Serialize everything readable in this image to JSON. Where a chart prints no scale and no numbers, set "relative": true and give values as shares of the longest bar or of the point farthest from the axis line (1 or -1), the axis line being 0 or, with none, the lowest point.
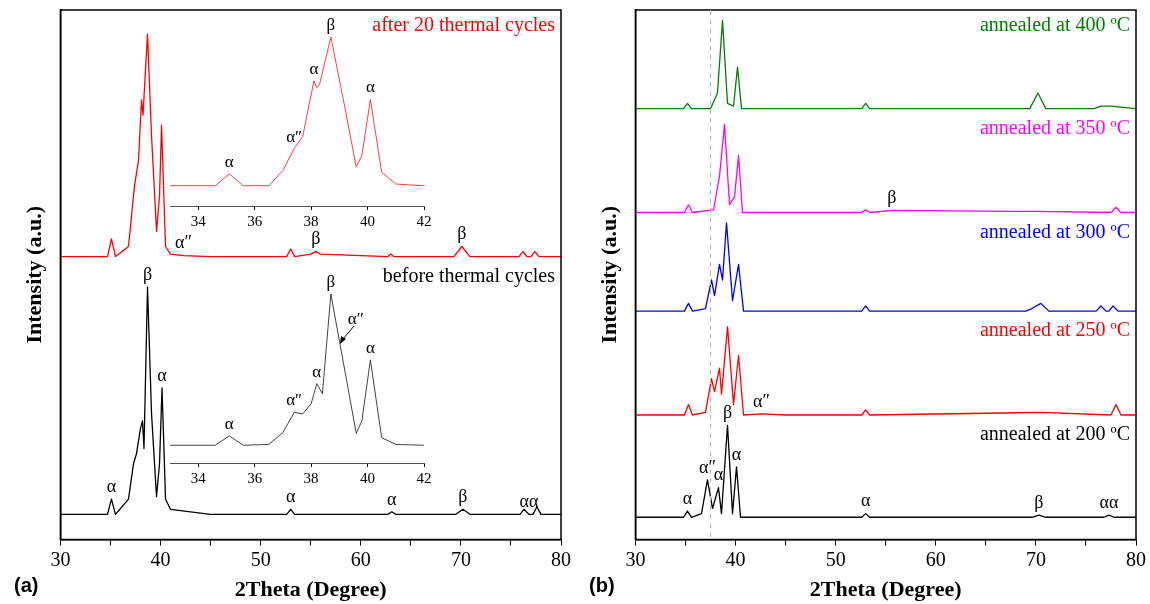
{
  "chart_data": [
    {
      "type": "line",
      "relative": true,
      "xlabel": "2Theta (Degree)",
      "ylabel": "Intensity (a.u.)",
      "xlim": [
        30,
        80
      ],
      "xticks": [
        30,
        {
          "value": 35,
          "label": null
        },
        40,
        {
          "value": 45,
          "label": null
        },
        50,
        {
          "value": 55,
          "label": null
        },
        60,
        {
          "value": 65,
          "label": null
        },
        70,
        {
          "value": 75,
          "label": null
        },
        80
      ],
      "tick_labels": "x",
      "series": [
        {
          "name": "before thermal cycles",
          "color": "#000000",
          "x": [
            30,
            34.7,
            35.1,
            35.5,
            36.8,
            37.3,
            37.6,
            38.0,
            38.2,
            38.35,
            38.7,
            39.1,
            39.6,
            39.9,
            40.15,
            40.5,
            41,
            45,
            52.6,
            53,
            53.4,
            62.7,
            63.1,
            63.5,
            69.5,
            70.2,
            70.9,
            75.9,
            76.3,
            76.8,
            77.2,
            77.6,
            78,
            80
          ],
          "values": [
            0.05,
            0.05,
            0.08,
            0.05,
            0.08,
            0.15,
            0.17,
            0.22,
            0.235,
            0.18,
            0.5,
            0.25,
            0.085,
            0.15,
            0.3,
            0.08,
            0.06,
            0.05,
            0.05,
            0.06,
            0.05,
            0.05,
            0.055,
            0.05,
            0.05,
            0.06,
            0.05,
            0.05,
            0.06,
            0.05,
            0.05,
            0.065,
            0.05,
            0.05
          ]
        },
        {
          "name": "after 20 thermal cycles",
          "color": "#ff0000",
          "x": [
            30,
            34.7,
            35.1,
            35.5,
            36.8,
            37.4,
            37.8,
            38.1,
            38.25,
            38.7,
            39.1,
            39.6,
            39.9,
            40.1,
            40.5,
            41,
            42.3,
            45,
            52.6,
            53,
            53.4,
            55,
            55.5,
            56,
            62.7,
            63,
            63.3,
            69.3,
            70.1,
            70.9,
            75.8,
            76.2,
            76.6,
            77,
            77.4,
            77.8,
            80
          ],
          "values": [
            0.56,
            0.56,
            0.595,
            0.56,
            0.58,
            0.7,
            0.75,
            0.87,
            0.84,
            1.0,
            0.8,
            0.61,
            0.68,
            0.82,
            0.58,
            0.565,
            0.562,
            0.56,
            0.56,
            0.575,
            0.56,
            0.565,
            0.57,
            0.565,
            0.56,
            0.565,
            0.56,
            0.56,
            0.58,
            0.56,
            0.56,
            0.57,
            0.56,
            0.56,
            0.57,
            0.56,
            0.56
          ]
        }
      ],
      "annotations": [
        {
          "text": "α",
          "x": 35.1,
          "y": 0.08
        },
        {
          "text": "β",
          "x": 38.7,
          "y": 0.5
        },
        {
          "text": "α",
          "x": 40.15,
          "y": 0.3
        },
        {
          "text": "α",
          "x": 53,
          "y": 0.06
        },
        {
          "text": "α",
          "x": 63.1,
          "y": 0.055
        },
        {
          "text": "β",
          "x": 70.2,
          "y": 0.06
        },
        {
          "text": "αα",
          "x": 76.8,
          "y": 0.05
        },
        {
          "text": "α″",
          "x": 42.3,
          "y": 0.562
        },
        {
          "text": "β",
          "x": 55.5,
          "y": 0.57
        },
        {
          "text": "β",
          "x": 70.1,
          "y": 0.58
        },
        "(a)"
      ]
    },
    {
      "type": "line",
      "relative": true,
      "xlim": [
        33,
        42
      ],
      "xticks": [
        34,
        36,
        38,
        40,
        42
      ],
      "tick_labels": "x",
      "series": [
        {
          "color": "#ff4040",
          "x": [
            33,
            34.6,
            35.1,
            35.6,
            36.5,
            37,
            37.4,
            37.7,
            38.1,
            38.2,
            38.3,
            38.7,
            39.2,
            39.6,
            39.8,
            40.1,
            40.5,
            41,
            42
          ],
          "values": [
            0.12,
            0.12,
            0.19,
            0.12,
            0.12,
            0.21,
            0.34,
            0.41,
            0.74,
            0.7,
            0.72,
            1.0,
            0.58,
            0.23,
            0.3,
            0.63,
            0.2,
            0.13,
            0.12
          ]
        }
      ],
      "annotations": [
        {
          "text": "α",
          "x": 35.1,
          "y": 0.19
        },
        {
          "text": "α″",
          "x": 37.4,
          "y": 0.34
        },
        {
          "text": "α",
          "x": 38.1,
          "y": 0.74
        },
        {
          "text": "β",
          "x": 38.7,
          "y": 1.0
        },
        {
          "text": "α",
          "x": 40.1,
          "y": 0.63
        }
      ]
    },
    {
      "type": "line",
      "relative": true,
      "xlim": [
        33,
        42
      ],
      "xticks": [
        34,
        36,
        38,
        40,
        42
      ],
      "tick_labels": "x",
      "series": [
        {
          "color": "#444444",
          "x": [
            33,
            34.6,
            35.1,
            35.6,
            36.5,
            37,
            37.4,
            37.7,
            38.0,
            38.2,
            38.4,
            38.7,
            39.0,
            39.3,
            39.6,
            39.8,
            40.1,
            40.5,
            41,
            42
          ],
          "values": [
            0.105,
            0.105,
            0.16,
            0.105,
            0.11,
            0.18,
            0.3,
            0.29,
            0.35,
            0.47,
            0.41,
            1.0,
            0.725,
            0.45,
            0.175,
            0.25,
            0.61,
            0.15,
            0.11,
            0.105
          ]
        }
      ],
      "annotations": [
        {
          "text": "α",
          "x": 35.1,
          "y": 0.16
        },
        {
          "text": "α″",
          "x": 37.4,
          "y": 0.3
        },
        {
          "text": "α",
          "x": 38.2,
          "y": 0.47
        },
        {
          "text": "β",
          "x": 38.7,
          "y": 1.0
        },
        "α″",
        {
          "text": "α",
          "x": 40.1,
          "y": 0.61
        }
      ]
    },
    {
      "type": "line",
      "relative": true,
      "xlabel": "2Theta (Degree)",
      "ylabel": "Intensity (a.u.)",
      "xlim": [
        30,
        80
      ],
      "xticks": [
        30,
        {
          "value": 35,
          "label": null
        },
        40,
        {
          "value": 45,
          "label": null
        },
        50,
        {
          "value": 55,
          "label": null
        },
        60,
        {
          "value": 65,
          "label": null
        },
        70,
        {
          "value": 75,
          "label": null
        },
        80
      ],
      "tick_labels": "x",
      "series": [
        {
          "name": "annealed at 200 ºC",
          "color": "#000000",
          "x": [
            30,
            34.8,
            35.2,
            35.6,
            36.6,
            37.2,
            37.7,
            38.3,
            38.6,
            39.2,
            39.7,
            40.1,
            40.5,
            45,
            52.6,
            53,
            53.4,
            69.6,
            70.3,
            71,
            76.8,
            77.3,
            77.8,
            80
          ],
          "values": [
            0.043,
            0.043,
            0.055,
            0.043,
            0.05,
            0.115,
            0.06,
            0.1,
            0.05,
            0.22,
            0.05,
            0.14,
            0.043,
            0.043,
            0.043,
            0.05,
            0.043,
            0.043,
            0.047,
            0.043,
            0.043,
            0.047,
            0.043,
            0.043
          ]
        },
        {
          "name": "annealed at 250 ºC",
          "color": "#ff0000",
          "x": [
            30,
            34.9,
            35.3,
            35.7,
            37.0,
            37.6,
            37.9,
            38.4,
            38.6,
            39.2,
            39.8,
            40.3,
            40.8,
            42.6,
            45,
            52.6,
            53,
            53.4,
            70.5,
            77.5,
            78,
            78.5,
            80
          ],
          "values": [
            0.24,
            0.24,
            0.26,
            0.24,
            0.245,
            0.31,
            0.285,
            0.33,
            0.28,
            0.41,
            0.26,
            0.355,
            0.24,
            0.242,
            0.24,
            0.24,
            0.25,
            0.24,
            0.245,
            0.24,
            0.26,
            0.24,
            0.24
          ]
        },
        {
          "name": "annealed at 300 ºC",
          "color": "#0000ff",
          "x": [
            30,
            34.9,
            35.3,
            35.7,
            37.0,
            37.6,
            37.9,
            38.4,
            38.7,
            39.1,
            39.7,
            40.3,
            40.8,
            45,
            52.6,
            53,
            53.4,
            69,
            69.6,
            70.5,
            71.3,
            76,
            76.5,
            77,
            77.3,
            77.7,
            78.2,
            80
          ],
          "values": [
            0.44,
            0.44,
            0.455,
            0.44,
            0.445,
            0.5,
            0.47,
            0.53,
            0.5,
            0.61,
            0.46,
            0.53,
            0.44,
            0.44,
            0.44,
            0.45,
            0.44,
            0.44,
            0.445,
            0.455,
            0.44,
            0.44,
            0.45,
            0.44,
            0.44,
            0.45,
            0.44,
            0.44
          ]
        },
        {
          "name": "annealed at 350 ºC",
          "color": "#ff00ff",
          "x": [
            30,
            34.9,
            35.3,
            35.7,
            37.8,
            38.4,
            38.6,
            38.9,
            39.4,
            39.9,
            40.3,
            40.7,
            45,
            52.6,
            53,
            53.4,
            55.6,
            70.2,
            77.5,
            78,
            78.5,
            80
          ],
          "values": [
            0.63,
            0.63,
            0.645,
            0.63,
            0.635,
            0.7,
            0.74,
            0.8,
            0.645,
            0.66,
            0.74,
            0.63,
            0.63,
            0.63,
            0.635,
            0.63,
            0.634,
            0.632,
            0.63,
            0.64,
            0.63,
            0.63
          ]
        },
        {
          "name": "annealed at 400 ºC",
          "color": "#008000",
          "x": [
            30,
            34.8,
            35.2,
            35.6,
            37.5,
            38.2,
            38.7,
            39.2,
            39.8,
            40.2,
            40.6,
            45,
            52.6,
            53,
            53.4,
            69.4,
            70.2,
            71,
            75.8,
            76.5,
            77.5,
            80
          ],
          "values": [
            0.83,
            0.83,
            0.84,
            0.83,
            0.83,
            0.86,
            1.0,
            0.84,
            0.835,
            0.91,
            0.83,
            0.83,
            0.83,
            0.84,
            0.83,
            0.83,
            0.86,
            0.83,
            0.83,
            0.835,
            0.835,
            0.83
          ]
        }
      ],
      "ref_lines": [
        {
          "axis": "x",
          "value": 37.5,
          "color": "#bbbbbb",
          "line_style": "dashed"
        }
      ],
      "annotations": [
        {
          "text": "β",
          "x": 55.6,
          "y": 0.634
        },
        {
          "text": "α″",
          "x": 42.6,
          "y": 0.242
        },
        {
          "text": "α",
          "x": 35.2,
          "y": 0.055
        },
        {
          "text": "α″",
          "x": 37.2,
          "y": 0.115
        },
        {
          "text": "α",
          "x": 38.3,
          "y": 0.1
        },
        {
          "text": "β",
          "x": 39.2,
          "y": 0.22
        },
        {
          "text": "α",
          "x": 40.1,
          "y": 0.14
        },
        {
          "text": "α",
          "x": 53,
          "y": 0.05
        },
        {
          "text": "β",
          "x": 70.3,
          "y": 0.047
        },
        {
          "text": "αα",
          "x": 77.3,
          "y": 0.047
        },
        "(b)"
      ]
    }
  ]
}
